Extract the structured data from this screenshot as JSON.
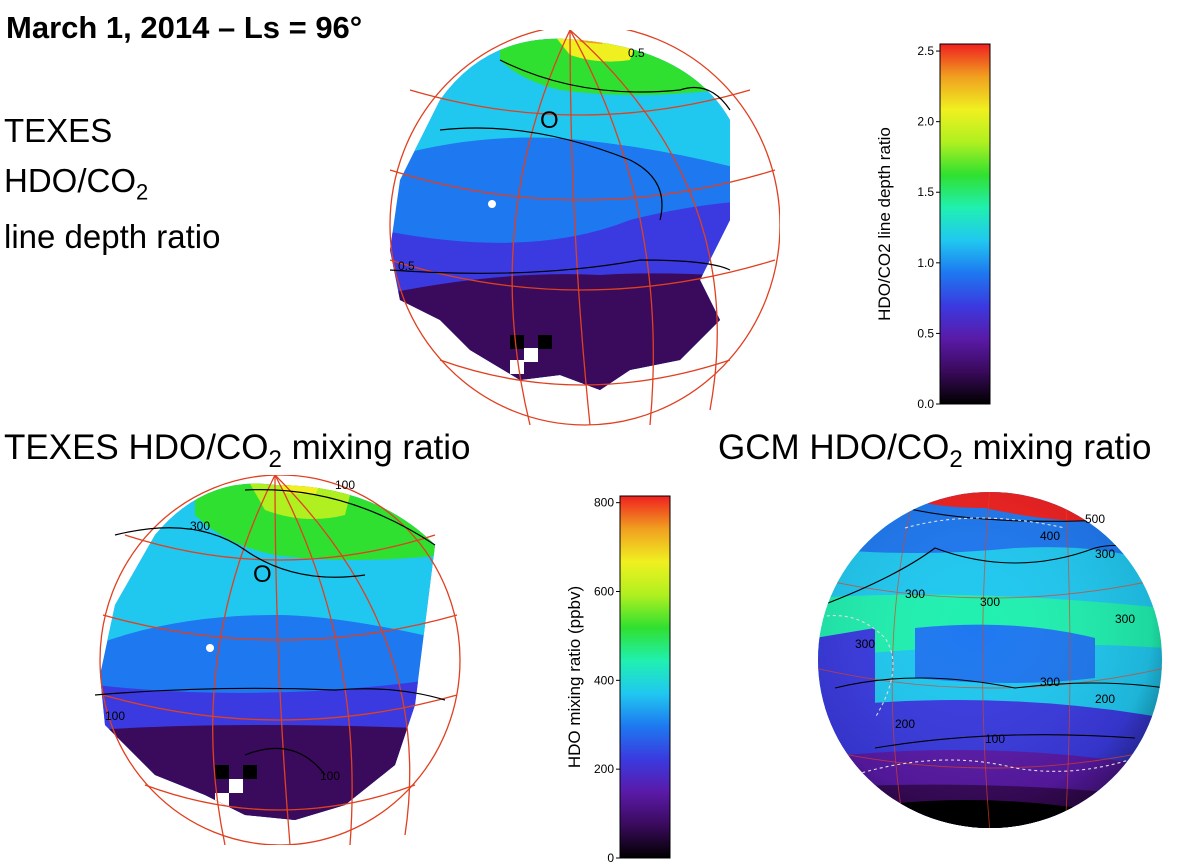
{
  "figure_title": "March 1, 2014 – Ls = 96°",
  "panel_a": {
    "label_lines": [
      "TEXES",
      "HDO/CO",
      "line  depth ratio"
    ],
    "label_sub": "2",
    "marker": "O",
    "contour_labels": [
      "0.5",
      "0.5"
    ]
  },
  "panel_b": {
    "title_prefix": "TEXES HDO/CO",
    "title_sub": "2",
    "title_suffix": " mixing ratio",
    "marker": "O",
    "contour_labels": [
      "100",
      "300",
      "100",
      "100"
    ]
  },
  "panel_c": {
    "title_prefix": "GCM HDO/CO",
    "title_sub": "2",
    "title_suffix": " mixing ratio",
    "contour_labels": [
      "500",
      "400",
      "300",
      "300",
      "300",
      "300",
      "300",
      "300",
      "200",
      "200",
      "100"
    ]
  },
  "chart_data": [
    {
      "type": "heatmap",
      "name": "colorbar-line-depth",
      "ylabel": "HDO/CO2 line depth ratio",
      "ylim": [
        0.0,
        2.55
      ],
      "ticks": [
        "0.0",
        "0.5",
        "1.0",
        "1.5",
        "2.0",
        "2.5"
      ],
      "tick_values": [
        0.0,
        0.5,
        1.0,
        1.5,
        2.0,
        2.5
      ]
    },
    {
      "type": "heatmap",
      "name": "colorbar-mixing-ratio",
      "ylabel": "HDO mixing ratio (ppbv)",
      "ylim": [
        0,
        815
      ],
      "ticks": [
        "0",
        "200",
        "400",
        "600",
        "800"
      ],
      "tick_values": [
        0,
        200,
        400,
        600,
        800
      ]
    }
  ],
  "colors": {
    "grid": "#e04020",
    "ramp": [
      "#000000",
      "#3a0a5c",
      "#5a1aa8",
      "#3a3ae0",
      "#1e78f0",
      "#20c8f0",
      "#20f0b0",
      "#30e030",
      "#b0f020",
      "#f0f020",
      "#f0a020",
      "#f02020"
    ]
  }
}
